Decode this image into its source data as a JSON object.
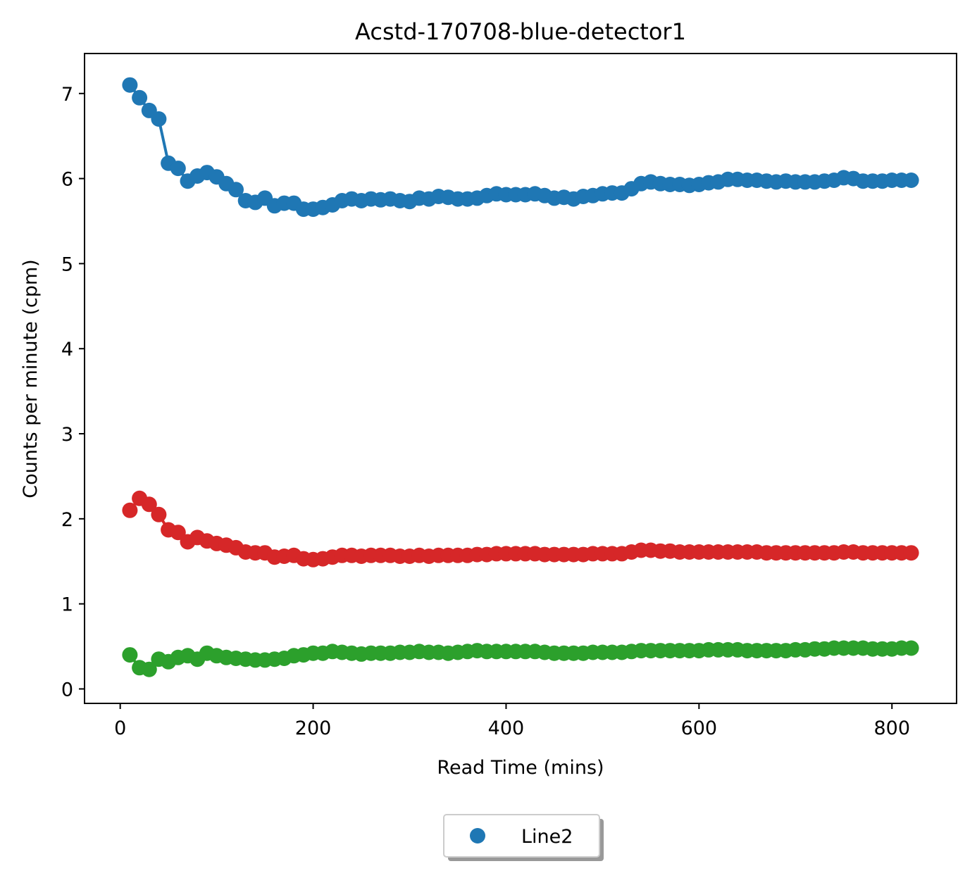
{
  "chart_data": {
    "type": "line",
    "title": "Acstd-170708-blue-detector1",
    "xlabel": "Read Time (mins)",
    "ylabel": "Counts per minute (cpm)",
    "xlim": [
      -37,
      867
    ],
    "ylim": [
      -0.17,
      7.47
    ],
    "xticks": [
      0,
      200,
      400,
      600,
      800
    ],
    "yticks": [
      0,
      1,
      2,
      3,
      4,
      5,
      6,
      7
    ],
    "grid": false,
    "legend": {
      "placement": "bottom-center-outside",
      "entries": [
        "Line2"
      ],
      "marker_color": "#1f77b4"
    },
    "series": [
      {
        "color": "#1f77b4",
        "x": [
          10,
          20,
          30,
          40,
          50,
          60,
          70,
          80,
          90,
          100,
          110,
          120,
          130,
          140,
          150,
          160,
          170,
          180,
          190,
          200,
          210,
          220,
          230,
          240,
          250,
          260,
          270,
          280,
          290,
          300,
          310,
          320,
          330,
          340,
          350,
          360,
          370,
          380,
          390,
          400,
          410,
          420,
          430,
          440,
          450,
          460,
          470,
          480,
          490,
          500,
          510,
          520,
          530,
          540,
          550,
          560,
          570,
          580,
          590,
          600,
          610,
          620,
          630,
          640,
          650,
          660,
          670,
          680,
          690,
          700,
          710,
          720,
          730,
          740,
          750,
          760,
          770,
          780,
          790,
          800,
          810,
          820
        ],
        "y": [
          7.1,
          6.95,
          6.8,
          6.7,
          6.18,
          6.12,
          5.97,
          6.03,
          6.07,
          6.02,
          5.94,
          5.87,
          5.74,
          5.72,
          5.77,
          5.68,
          5.71,
          5.71,
          5.64,
          5.64,
          5.66,
          5.69,
          5.74,
          5.76,
          5.74,
          5.76,
          5.75,
          5.76,
          5.74,
          5.73,
          5.77,
          5.76,
          5.79,
          5.78,
          5.76,
          5.76,
          5.77,
          5.8,
          5.82,
          5.81,
          5.81,
          5.81,
          5.82,
          5.8,
          5.77,
          5.78,
          5.76,
          5.79,
          5.8,
          5.82,
          5.83,
          5.83,
          5.88,
          5.94,
          5.96,
          5.94,
          5.93,
          5.93,
          5.92,
          5.93,
          5.95,
          5.96,
          5.99,
          5.99,
          5.98,
          5.98,
          5.97,
          5.96,
          5.97,
          5.96,
          5.96,
          5.96,
          5.97,
          5.98,
          6.01,
          6.0,
          5.97,
          5.97,
          5.97,
          5.98,
          5.98,
          5.98
        ]
      },
      {
        "color": "#d62728",
        "x": [
          10,
          20,
          30,
          40,
          50,
          60,
          70,
          80,
          90,
          100,
          110,
          120,
          130,
          140,
          150,
          160,
          170,
          180,
          190,
          200,
          210,
          220,
          230,
          240,
          250,
          260,
          270,
          280,
          290,
          300,
          310,
          320,
          330,
          340,
          350,
          360,
          370,
          380,
          390,
          400,
          410,
          420,
          430,
          440,
          450,
          460,
          470,
          480,
          490,
          500,
          510,
          520,
          530,
          540,
          550,
          560,
          570,
          580,
          590,
          600,
          610,
          620,
          630,
          640,
          650,
          660,
          670,
          680,
          690,
          700,
          710,
          720,
          730,
          740,
          750,
          760,
          770,
          780,
          790,
          800,
          810,
          820
        ],
        "y": [
          2.1,
          2.24,
          2.17,
          2.05,
          1.87,
          1.84,
          1.73,
          1.78,
          1.74,
          1.71,
          1.69,
          1.66,
          1.61,
          1.6,
          1.6,
          1.55,
          1.56,
          1.57,
          1.53,
          1.52,
          1.53,
          1.55,
          1.57,
          1.57,
          1.56,
          1.57,
          1.57,
          1.57,
          1.56,
          1.56,
          1.57,
          1.56,
          1.57,
          1.57,
          1.57,
          1.57,
          1.58,
          1.58,
          1.59,
          1.59,
          1.59,
          1.59,
          1.59,
          1.58,
          1.58,
          1.58,
          1.58,
          1.58,
          1.59,
          1.59,
          1.59,
          1.59,
          1.61,
          1.63,
          1.63,
          1.62,
          1.62,
          1.61,
          1.61,
          1.61,
          1.61,
          1.61,
          1.61,
          1.61,
          1.61,
          1.61,
          1.6,
          1.6,
          1.6,
          1.6,
          1.6,
          1.6,
          1.6,
          1.6,
          1.61,
          1.61,
          1.6,
          1.6,
          1.6,
          1.6,
          1.6,
          1.6
        ]
      },
      {
        "color": "#2ca02c",
        "x": [
          10,
          20,
          30,
          40,
          50,
          60,
          70,
          80,
          90,
          100,
          110,
          120,
          130,
          140,
          150,
          160,
          170,
          180,
          190,
          200,
          210,
          220,
          230,
          240,
          250,
          260,
          270,
          280,
          290,
          300,
          310,
          320,
          330,
          340,
          350,
          360,
          370,
          380,
          390,
          400,
          410,
          420,
          430,
          440,
          450,
          460,
          470,
          480,
          490,
          500,
          510,
          520,
          530,
          540,
          550,
          560,
          570,
          580,
          590,
          600,
          610,
          620,
          630,
          640,
          650,
          660,
          670,
          680,
          690,
          700,
          710,
          720,
          730,
          740,
          750,
          760,
          770,
          780,
          790,
          800,
          810,
          820
        ],
        "y": [
          0.4,
          0.25,
          0.23,
          0.35,
          0.32,
          0.37,
          0.39,
          0.35,
          0.42,
          0.39,
          0.37,
          0.36,
          0.35,
          0.34,
          0.34,
          0.35,
          0.36,
          0.39,
          0.4,
          0.42,
          0.42,
          0.44,
          0.43,
          0.42,
          0.41,
          0.42,
          0.42,
          0.42,
          0.43,
          0.43,
          0.44,
          0.43,
          0.43,
          0.42,
          0.43,
          0.44,
          0.45,
          0.44,
          0.44,
          0.44,
          0.44,
          0.44,
          0.44,
          0.43,
          0.42,
          0.42,
          0.42,
          0.42,
          0.43,
          0.43,
          0.43,
          0.43,
          0.44,
          0.45,
          0.45,
          0.45,
          0.45,
          0.45,
          0.45,
          0.45,
          0.46,
          0.46,
          0.46,
          0.46,
          0.45,
          0.45,
          0.45,
          0.45,
          0.45,
          0.46,
          0.46,
          0.47,
          0.47,
          0.48,
          0.48,
          0.48,
          0.48,
          0.47,
          0.47,
          0.47,
          0.48,
          0.48
        ]
      }
    ]
  }
}
